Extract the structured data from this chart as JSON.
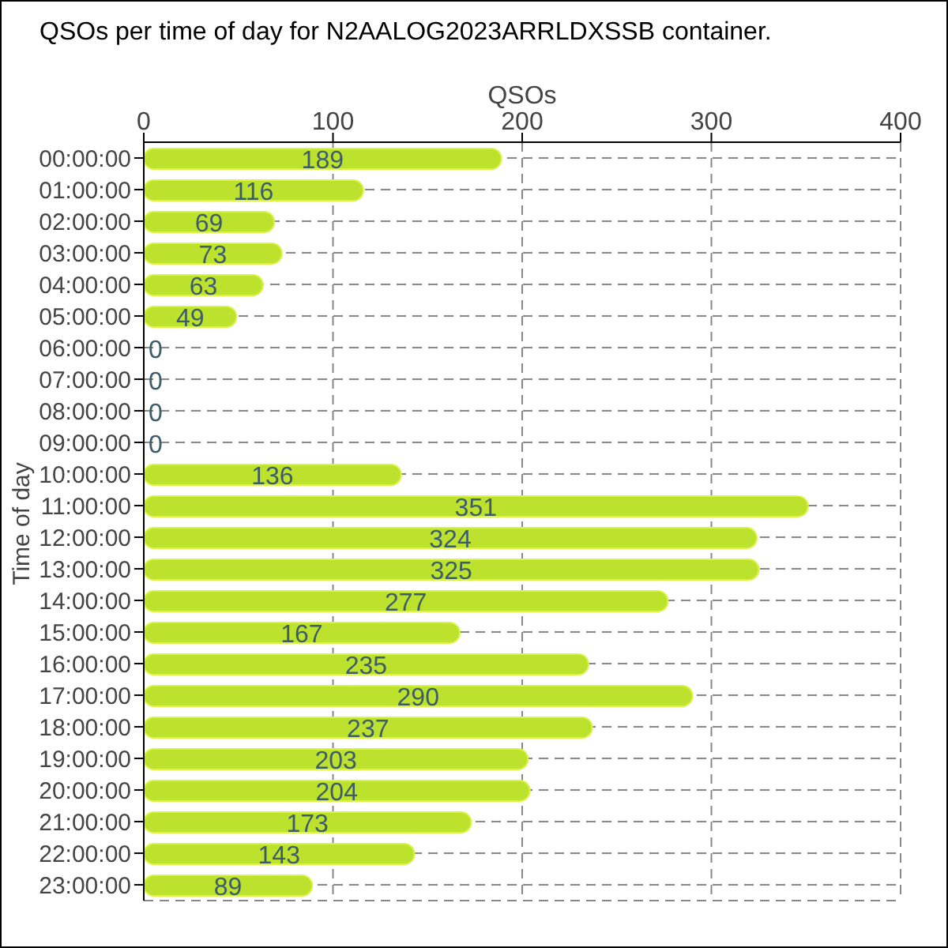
{
  "chart_data": {
    "type": "bar",
    "orientation": "horizontal",
    "title": "QSOs per time of day for N2AALOG2023ARRLDXSSB container.",
    "xlabel": "QSOs",
    "ylabel": "Time of day",
    "categories": [
      "00:00:00",
      "01:00:00",
      "02:00:00",
      "03:00:00",
      "04:00:00",
      "05:00:00",
      "06:00:00",
      "07:00:00",
      "08:00:00",
      "09:00:00",
      "10:00:00",
      "11:00:00",
      "12:00:00",
      "13:00:00",
      "14:00:00",
      "15:00:00",
      "16:00:00",
      "17:00:00",
      "18:00:00",
      "19:00:00",
      "20:00:00",
      "21:00:00",
      "22:00:00",
      "23:00:00"
    ],
    "values": [
      189,
      116,
      69,
      73,
      63,
      49,
      0,
      0,
      0,
      0,
      136,
      351,
      324,
      325,
      277,
      167,
      235,
      290,
      237,
      203,
      204,
      173,
      143,
      89
    ],
    "color": "#bde22e",
    "xlim": [
      0,
      400
    ],
    "xticks": [
      0,
      100,
      200,
      300,
      400
    ],
    "grid": true,
    "data_labels": true
  }
}
